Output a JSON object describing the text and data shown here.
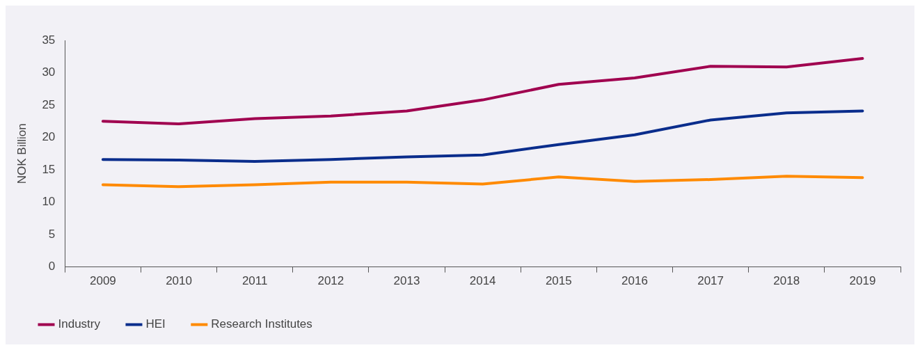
{
  "chart_data": {
    "type": "line",
    "ylabel": "NOK Billion",
    "categories": [
      "2009",
      "2010",
      "2011",
      "2012",
      "2013",
      "2014",
      "2015",
      "2016",
      "2017",
      "2018",
      "2019"
    ],
    "series": [
      {
        "name": "Industry",
        "color": "#a0004f",
        "values": [
          22.5,
          22.1,
          22.9,
          23.3,
          24.1,
          25.8,
          28.2,
          29.2,
          31.0,
          30.9,
          32.2
        ]
      },
      {
        "name": "HEI",
        "color": "#0a2d8c",
        "values": [
          16.6,
          16.5,
          16.3,
          16.6,
          17.0,
          17.3,
          18.9,
          20.4,
          22.7,
          23.8,
          24.1
        ]
      },
      {
        "name": "Research Institutes",
        "color": "#ff8a00",
        "values": [
          12.7,
          12.4,
          12.7,
          13.1,
          13.1,
          12.8,
          13.9,
          13.2,
          13.5,
          14.0,
          13.8
        ]
      }
    ],
    "ylim": [
      0,
      35
    ],
    "yticks": [
      0,
      5,
      10,
      15,
      20,
      25,
      30,
      35
    ],
    "grid": false,
    "legend": "bottom left",
    "marker": "none",
    "line_style": "solid"
  }
}
